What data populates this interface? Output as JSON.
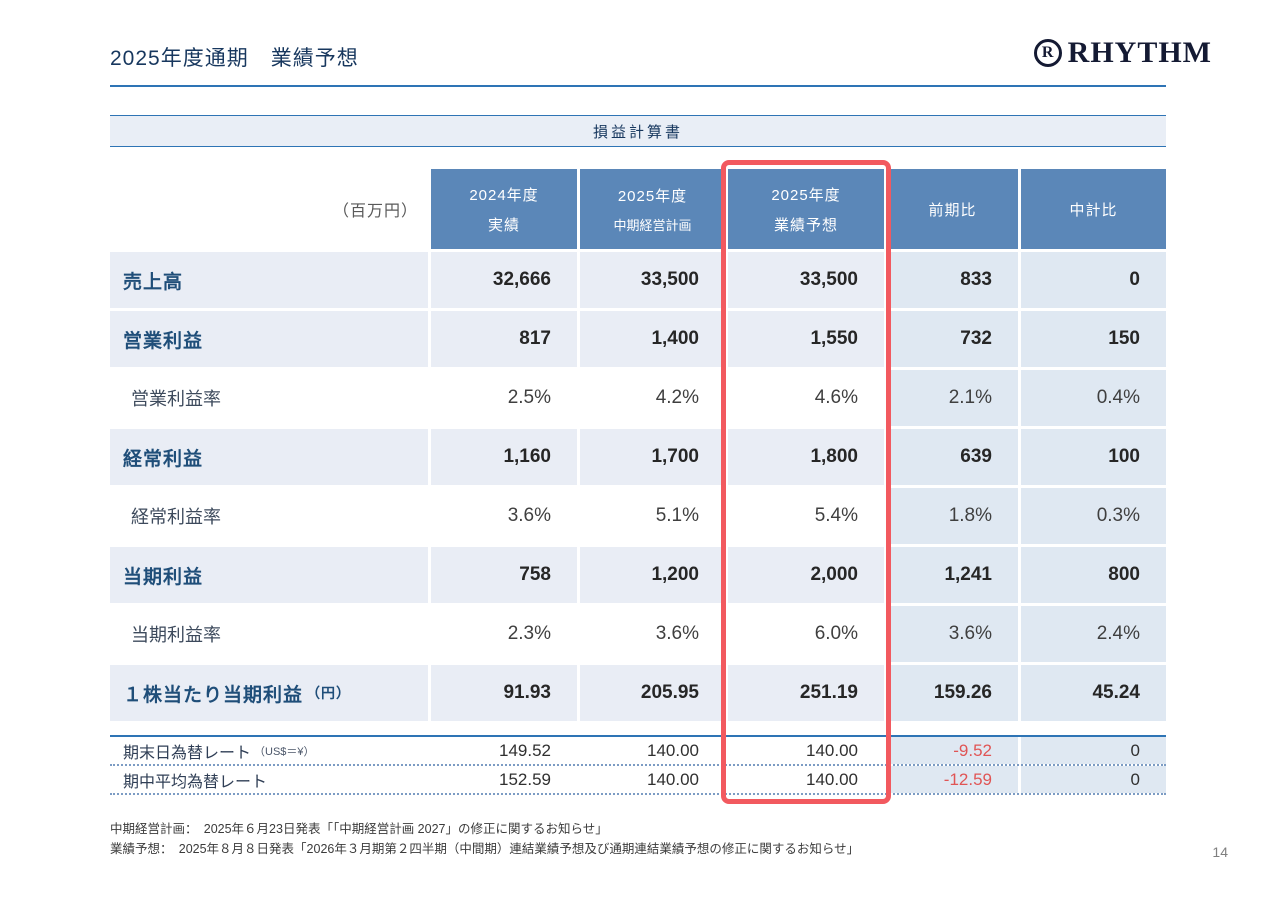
{
  "slide": {
    "title": "2025年度通期　業績予想",
    "page_number": "14"
  },
  "logo": {
    "r_letter": "R",
    "text": "RHYTHM"
  },
  "table": {
    "band_title": "損益計算書",
    "unit_label": "（百万円）",
    "columns": [
      {
        "line1": "2024年度",
        "line2": "実績"
      },
      {
        "line1": "2025年度",
        "line2": "中期経営計画"
      },
      {
        "line1": "2025年度",
        "line2": "業績予想"
      },
      {
        "line1": "前期比"
      },
      {
        "line1": "中計比"
      }
    ],
    "rows": [
      {
        "label": "売上高",
        "values": [
          "32,666",
          "33,500",
          "33,500",
          "833",
          "0"
        ]
      },
      {
        "label": "営業利益",
        "values": [
          "817",
          "1,400",
          "1,550",
          "732",
          "150"
        ]
      },
      {
        "label": "営業利益率",
        "values": [
          "2.5%",
          "4.2%",
          "4.6%",
          "2.1%",
          "0.4%"
        ]
      },
      {
        "label": "経常利益",
        "values": [
          "1,160",
          "1,700",
          "1,800",
          "639",
          "100"
        ]
      },
      {
        "label": "経常利益率",
        "values": [
          "3.6%",
          "5.1%",
          "5.4%",
          "1.8%",
          "0.3%"
        ]
      },
      {
        "label": "当期利益",
        "values": [
          "758",
          "1,200",
          "2,000",
          "1,241",
          "800"
        ]
      },
      {
        "label": "当期利益率",
        "values": [
          "2.3%",
          "3.6%",
          "6.0%",
          "3.6%",
          "2.4%"
        ]
      },
      {
        "label": "１株当たり当期利益",
        "label_suffix": "（円）",
        "values": [
          "91.93",
          "205.95",
          "251.19",
          "159.26",
          "45.24"
        ]
      }
    ],
    "fx_rows": [
      {
        "label": "期末日為替レート",
        "label_suffix": "（US$＝¥）",
        "values": [
          "149.52",
          "140.00",
          "140.00",
          "-9.52",
          "0"
        ]
      },
      {
        "label": "期中平均為替レート",
        "label_suffix": "",
        "values": [
          "152.59",
          "140.00",
          "140.00",
          "-12.59",
          "0"
        ]
      }
    ]
  },
  "footnotes": [
    "中期経営計画：　2025年６月23日発表「「中期経営計画 2027」の修正に関するお知らせ」",
    "業績予想：　2025年８月８日発表「2026年３月期第２四半期（中間期）連結業績予想及び通期連結業績予想の修正に関するお知らせ」"
  ],
  "colors": {
    "header_blue": "#5b87b8",
    "band_bg": "#e9eef6",
    "stripe_bg": "#e9edf5",
    "cmp_bg": "#dfe8f2",
    "navy": "#17375e",
    "label_navy": "#1f4e79",
    "rule_blue": "#2e74b5",
    "highlight_red": "#f2595f",
    "negative_red": "#e05555",
    "muted": "#595959"
  }
}
